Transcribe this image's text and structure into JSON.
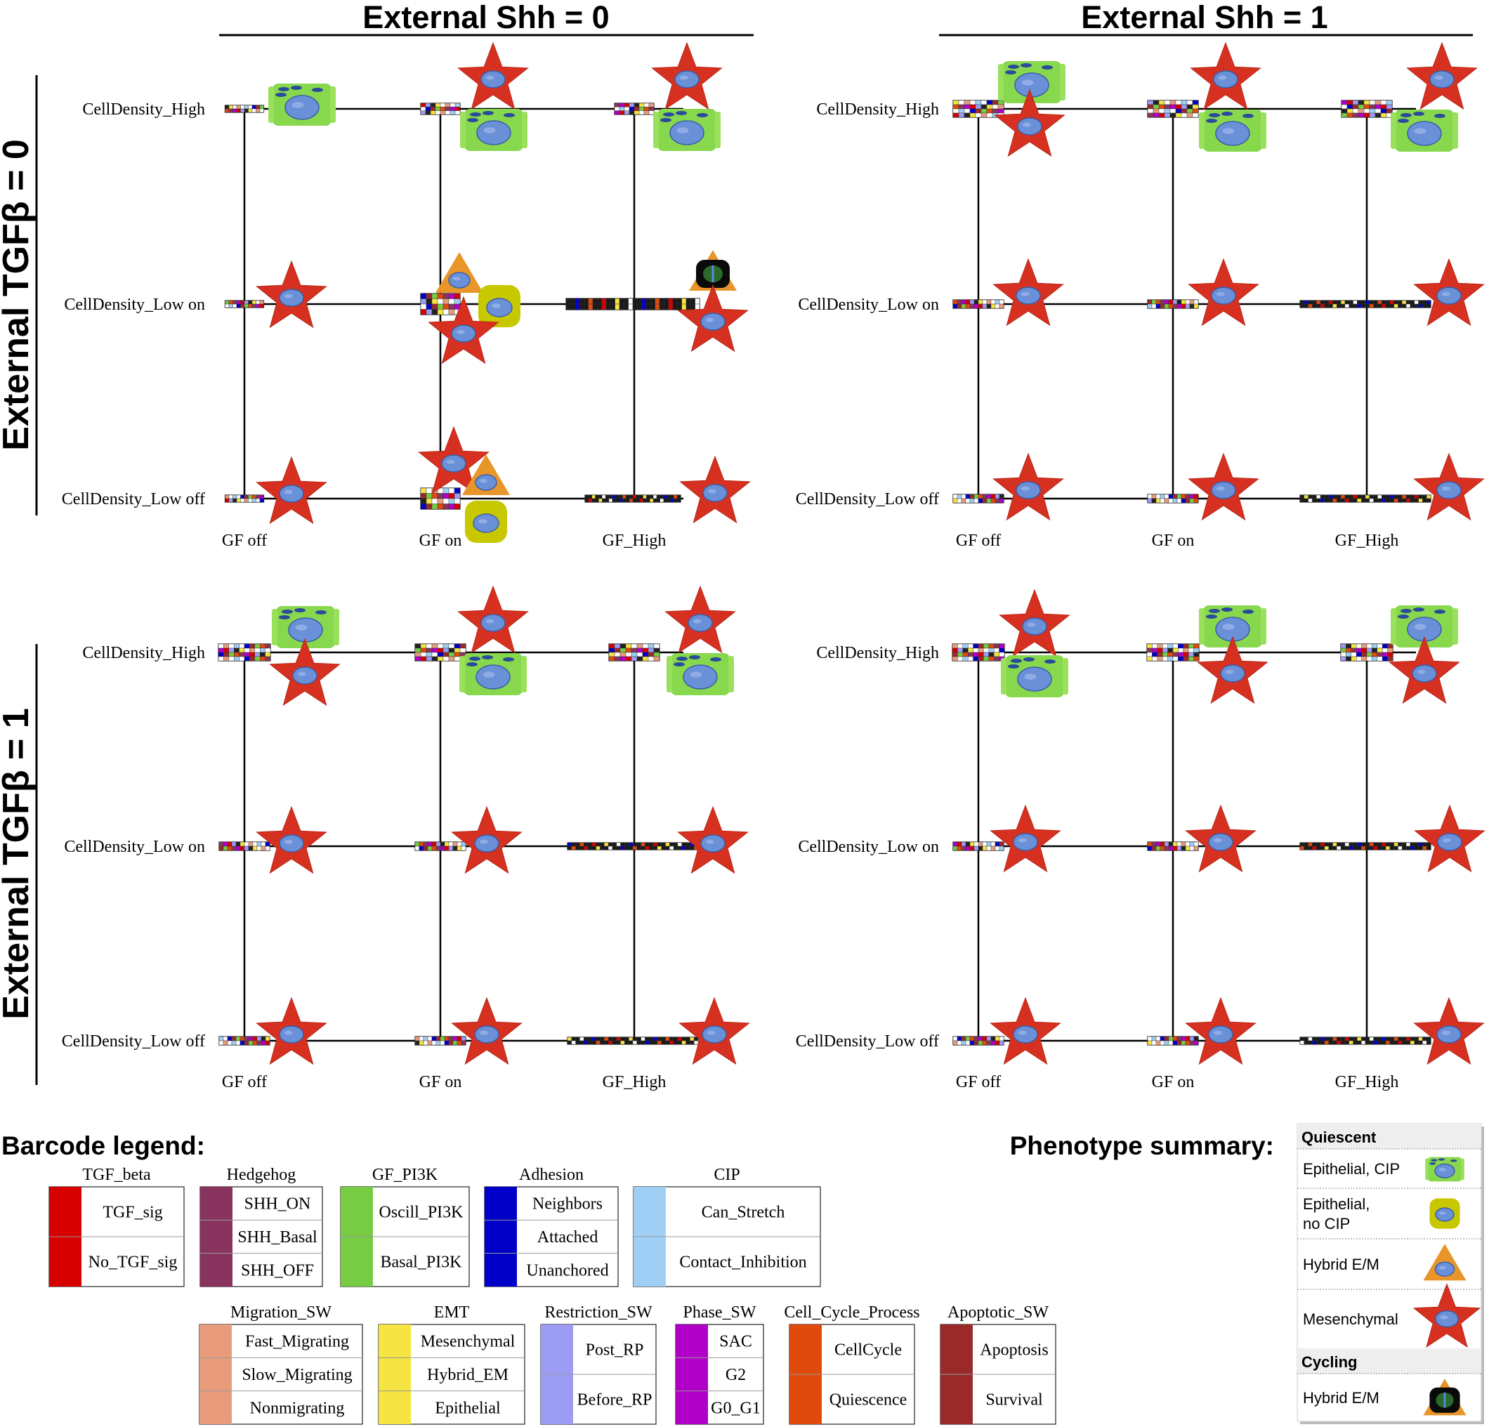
{
  "column_titles": [
    "External Shh = 0",
    "External Shh = 1"
  ],
  "row_titles": [
    "External TGFβ = 0",
    "External TGFβ = 1"
  ],
  "density_labels": [
    "CellDensity_High",
    "CellDensity_Low on",
    "CellDensity_Low off"
  ],
  "gf_labels": [
    "GF off",
    "GF on",
    "GF_High"
  ],
  "colors": {
    "tgf": "#d60000",
    "hedgehog": "#88345e",
    "gf_pi3k": "#77cc44",
    "adhesion": "#0000c8",
    "cip": "#9fcff5",
    "migration": "#e89c7c",
    "emt": "#f5e442",
    "restriction": "#9c9cf5",
    "phase": "#b000c8",
    "cell_cycle": "#e04a0c",
    "apoptotic": "#9a2a2a",
    "mesenchymal_star": "#d63020",
    "epithelial_cip": "#88d84e",
    "epithelial_no_cip": "#c8c800",
    "hybrid": "#e8962a",
    "nucleus": "#6a90d8"
  },
  "panels": [
    {
      "shh": 0,
      "tgfb": 0,
      "nodes": [
        {
          "row": 0,
          "col": 0,
          "phenotypes": [
            "epithelial-cip"
          ]
        },
        {
          "row": 0,
          "col": 1,
          "phenotypes": [
            "mesenchymal",
            "epithelial-cip"
          ]
        },
        {
          "row": 0,
          "col": 2,
          "phenotypes": [
            "mesenchymal",
            "epithelial-cip"
          ]
        },
        {
          "row": 1,
          "col": 0,
          "phenotypes": [
            "mesenchymal"
          ]
        },
        {
          "row": 1,
          "col": 1,
          "phenotypes": [
            "hybrid-em",
            "epithelial-no-cip",
            "mesenchymal"
          ]
        },
        {
          "row": 1,
          "col": 2,
          "phenotypes": [
            "cycling-hybrid-em",
            "mesenchymal"
          ]
        },
        {
          "row": 2,
          "col": 0,
          "phenotypes": [
            "mesenchymal"
          ]
        },
        {
          "row": 2,
          "col": 1,
          "phenotypes": [
            "mesenchymal",
            "hybrid-em",
            "epithelial-no-cip"
          ]
        },
        {
          "row": 2,
          "col": 2,
          "phenotypes": [
            "mesenchymal"
          ]
        }
      ]
    },
    {
      "shh": 1,
      "tgfb": 0,
      "nodes": [
        {
          "row": 0,
          "col": 0,
          "phenotypes": [
            "epithelial-cip",
            "mesenchymal"
          ]
        },
        {
          "row": 0,
          "col": 1,
          "phenotypes": [
            "mesenchymal",
            "epithelial-cip"
          ]
        },
        {
          "row": 0,
          "col": 2,
          "phenotypes": [
            "mesenchymal",
            "epithelial-cip"
          ]
        },
        {
          "row": 1,
          "col": 0,
          "phenotypes": [
            "mesenchymal"
          ]
        },
        {
          "row": 1,
          "col": 1,
          "phenotypes": [
            "mesenchymal"
          ]
        },
        {
          "row": 1,
          "col": 2,
          "phenotypes": [
            "mesenchymal"
          ]
        },
        {
          "row": 2,
          "col": 0,
          "phenotypes": [
            "mesenchymal"
          ]
        },
        {
          "row": 2,
          "col": 1,
          "phenotypes": [
            "mesenchymal"
          ]
        },
        {
          "row": 2,
          "col": 2,
          "phenotypes": [
            "mesenchymal"
          ]
        }
      ]
    },
    {
      "shh": 0,
      "tgfb": 1,
      "nodes": [
        {
          "row": 0,
          "col": 0,
          "phenotypes": [
            "epithelial-cip",
            "mesenchymal"
          ]
        },
        {
          "row": 0,
          "col": 1,
          "phenotypes": [
            "mesenchymal",
            "epithelial-cip"
          ]
        },
        {
          "row": 0,
          "col": 2,
          "phenotypes": [
            "mesenchymal",
            "epithelial-cip"
          ]
        },
        {
          "row": 1,
          "col": 0,
          "phenotypes": [
            "mesenchymal"
          ]
        },
        {
          "row": 1,
          "col": 1,
          "phenotypes": [
            "mesenchymal"
          ]
        },
        {
          "row": 1,
          "col": 2,
          "phenotypes": [
            "mesenchymal"
          ]
        },
        {
          "row": 2,
          "col": 0,
          "phenotypes": [
            "mesenchymal"
          ]
        },
        {
          "row": 2,
          "col": 1,
          "phenotypes": [
            "mesenchymal"
          ]
        },
        {
          "row": 2,
          "col": 2,
          "phenotypes": [
            "mesenchymal"
          ]
        }
      ]
    },
    {
      "shh": 1,
      "tgfb": 1,
      "nodes": [
        {
          "row": 0,
          "col": 0,
          "phenotypes": [
            "mesenchymal",
            "epithelial-cip"
          ]
        },
        {
          "row": 0,
          "col": 1,
          "phenotypes": [
            "epithelial-cip",
            "mesenchymal"
          ]
        },
        {
          "row": 0,
          "col": 2,
          "phenotypes": [
            "epithelial-cip",
            "mesenchymal"
          ]
        },
        {
          "row": 1,
          "col": 0,
          "phenotypes": [
            "mesenchymal"
          ]
        },
        {
          "row": 1,
          "col": 1,
          "phenotypes": [
            "mesenchymal"
          ]
        },
        {
          "row": 1,
          "col": 2,
          "phenotypes": [
            "mesenchymal"
          ]
        },
        {
          "row": 2,
          "col": 0,
          "phenotypes": [
            "mesenchymal"
          ]
        },
        {
          "row": 2,
          "col": 1,
          "phenotypes": [
            "mesenchymal"
          ]
        },
        {
          "row": 2,
          "col": 2,
          "phenotypes": [
            "mesenchymal"
          ]
        }
      ]
    }
  ],
  "legend": {
    "title": "Barcode legend:",
    "groups": [
      {
        "name": "TGF_beta",
        "color_key": "tgf",
        "states": [
          "TGF_sig",
          "No_TGF_sig"
        ]
      },
      {
        "name": "Hedgehog",
        "color_key": "hedgehog",
        "states": [
          "SHH_ON",
          "SHH_Basal",
          "SHH_OFF"
        ]
      },
      {
        "name": "GF_PI3K",
        "color_key": "gf_pi3k",
        "states": [
          "Oscill_PI3K",
          "Basal_PI3K"
        ]
      },
      {
        "name": "Adhesion",
        "color_key": "adhesion",
        "states": [
          "Neighbors",
          "Attached",
          "Unanchored"
        ]
      },
      {
        "name": "CIP",
        "color_key": "cip",
        "states": [
          "Can_Stretch",
          "Contact_Inhibition"
        ]
      },
      {
        "name": "Migration_SW",
        "color_key": "migration",
        "states": [
          "Fast_Migrating",
          "Slow_Migrating",
          "Nonmigrating"
        ]
      },
      {
        "name": "EMT",
        "color_key": "emt",
        "states": [
          "Mesenchymal",
          "Hybrid_EM",
          "Epithelial"
        ]
      },
      {
        "name": "Restriction_SW",
        "color_key": "restriction",
        "states": [
          "Post_RP",
          "Before_RP"
        ]
      },
      {
        "name": "Phase_SW",
        "color_key": "phase",
        "states": [
          "SAC",
          "G2",
          "G0_G1"
        ]
      },
      {
        "name": "Cell_Cycle_Process",
        "color_key": "cell_cycle",
        "states": [
          "CellCycle",
          "Quiescence"
        ]
      },
      {
        "name": "Apoptotic_SW",
        "color_key": "apoptotic",
        "states": [
          "Apoptosis",
          "Survival"
        ]
      }
    ]
  },
  "summary": {
    "title": "Phenotype summary:",
    "categories": [
      {
        "name": "Quiescent",
        "items": [
          {
            "label_lines": [
              "Epithelial, CIP"
            ],
            "icon": "epithelial-cip"
          },
          {
            "label_lines": [
              "Epithelial,",
              "no CIP"
            ],
            "icon": "epithelial-no-cip"
          },
          {
            "label_lines": [
              "Hybrid E/M"
            ],
            "icon": "hybrid-em"
          },
          {
            "label_lines": [
              "Mesenchymal"
            ],
            "icon": "mesenchymal"
          }
        ]
      },
      {
        "name": "Cycling",
        "items": [
          {
            "label_lines": [
              "Hybrid E/M"
            ],
            "icon": "cycling-hybrid-em"
          }
        ]
      }
    ]
  }
}
